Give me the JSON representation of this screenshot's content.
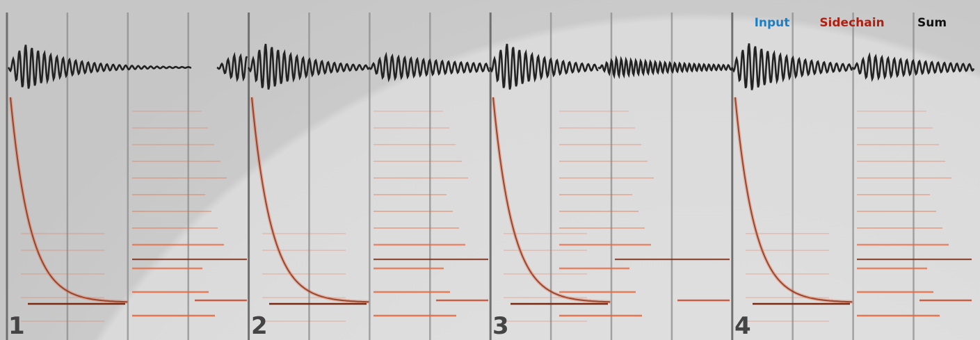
{
  "legend": [
    "Input",
    "Sidechain",
    "Sum"
  ],
  "panels": [
    {
      "label": "1"
    },
    {
      "label": "2"
    },
    {
      "label": "3"
    },
    {
      "label": "4"
    }
  ]
}
